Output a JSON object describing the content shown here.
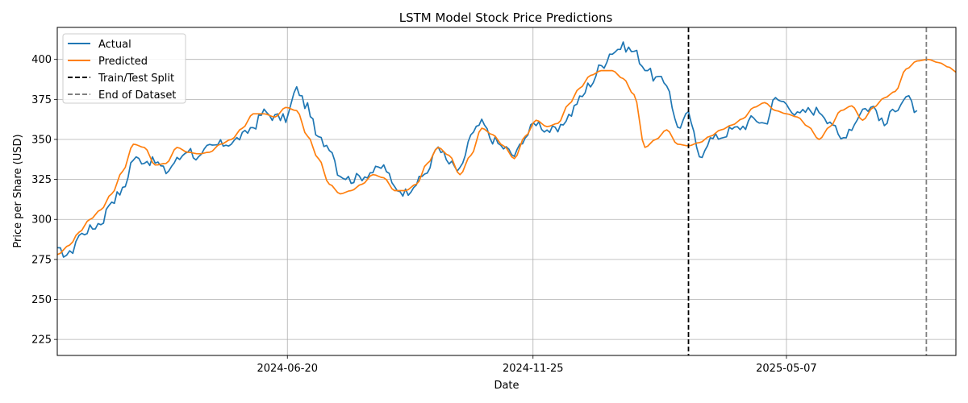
{
  "chart_data": {
    "type": "line",
    "title": "LSTM Model Stock Price Predictions",
    "xlabel": "Date",
    "ylabel": "Price per Share (USD)",
    "x_tick_labels": [
      "2024-06-20",
      "2024-11-25",
      "2025-05-07"
    ],
    "y_ticks": [
      225,
      250,
      275,
      300,
      325,
      350,
      375,
      400
    ],
    "ylim": [
      215,
      420
    ],
    "grid": true,
    "legend_position": "top-left",
    "x_range_dates": [
      "2024-01-24",
      "2025-08-24"
    ],
    "series": [
      {
        "name": "Actual",
        "color": "#1f77b4",
        "x": [
          "2024-01-24",
          "2024-02-01",
          "2024-02-07",
          "2024-02-14",
          "2024-02-21",
          "2024-02-28",
          "2024-03-06",
          "2024-03-13",
          "2024-03-20",
          "2024-03-27",
          "2024-04-03",
          "2024-04-10",
          "2024-04-17",
          "2024-04-24",
          "2024-05-01",
          "2024-05-08",
          "2024-05-15",
          "2024-05-22",
          "2024-05-29",
          "2024-06-05",
          "2024-06-12",
          "2024-06-19",
          "2024-06-26",
          "2024-07-03",
          "2024-07-10",
          "2024-07-17",
          "2024-07-24",
          "2024-07-31",
          "2024-08-07",
          "2024-08-14",
          "2024-08-21",
          "2024-08-28",
          "2024-09-04",
          "2024-09-11",
          "2024-09-18",
          "2024-09-25",
          "2024-10-02",
          "2024-10-09",
          "2024-10-16",
          "2024-10-23",
          "2024-10-30",
          "2024-11-06",
          "2024-11-13",
          "2024-11-20",
          "2024-11-27",
          "2024-12-04",
          "2024-12-11",
          "2024-12-18",
          "2024-12-25",
          "2025-01-01",
          "2025-01-08",
          "2025-01-15",
          "2025-01-22",
          "2025-01-29",
          "2025-02-05",
          "2025-02-12",
          "2025-02-19",
          "2025-02-26",
          "2025-03-05",
          "2025-03-12",
          "2025-03-19",
          "2025-03-26",
          "2025-04-02",
          "2025-04-09",
          "2025-04-16",
          "2025-04-23",
          "2025-04-30",
          "2025-05-07",
          "2025-05-14",
          "2025-05-21",
          "2025-05-28",
          "2025-06-04",
          "2025-06-11",
          "2025-06-18",
          "2025-06-25",
          "2025-07-02",
          "2025-07-09",
          "2025-07-16",
          "2025-07-23",
          "2025-07-30"
        ],
        "y": [
          280,
          278,
          290,
          294,
          298,
          312,
          318,
          338,
          337,
          336,
          330,
          337,
          344,
          338,
          345,
          347,
          348,
          352,
          358,
          367,
          364,
          363,
          381,
          370,
          350,
          346,
          328,
          325,
          327,
          330,
          333,
          320,
          317,
          323,
          330,
          346,
          335,
          330,
          352,
          360,
          350,
          345,
          340,
          352,
          361,
          356,
          355,
          365,
          375,
          385,
          396,
          405,
          408,
          405,
          395,
          388,
          385,
          358,
          365,
          340,
          350,
          352,
          356,
          358,
          363,
          360,
          375,
          373,
          365,
          368,
          368,
          362,
          350,
          358,
          369,
          370,
          359,
          370,
          376,
          368
        ]
      },
      {
        "name": "Predicted",
        "color": "#ff7f0e",
        "x": [
          "2024-01-24",
          "2024-02-01",
          "2024-02-07",
          "2024-02-14",
          "2024-02-21",
          "2024-02-28",
          "2024-03-06",
          "2024-03-13",
          "2024-03-20",
          "2024-03-27",
          "2024-04-03",
          "2024-04-10",
          "2024-04-17",
          "2024-04-24",
          "2024-05-01",
          "2024-05-08",
          "2024-05-15",
          "2024-05-22",
          "2024-05-29",
          "2024-06-05",
          "2024-06-12",
          "2024-06-19",
          "2024-06-26",
          "2024-07-03",
          "2024-07-10",
          "2024-07-17",
          "2024-07-24",
          "2024-07-31",
          "2024-08-07",
          "2024-08-14",
          "2024-08-21",
          "2024-08-28",
          "2024-09-04",
          "2024-09-11",
          "2024-09-18",
          "2024-09-25",
          "2024-10-02",
          "2024-10-09",
          "2024-10-16",
          "2024-10-23",
          "2024-10-30",
          "2024-11-06",
          "2024-11-13",
          "2024-11-20",
          "2024-11-27",
          "2024-12-04",
          "2024-12-11",
          "2024-12-18",
          "2024-12-25",
          "2025-01-01",
          "2025-01-08",
          "2025-01-15",
          "2025-01-22",
          "2025-01-29",
          "2025-02-05",
          "2025-02-12",
          "2025-02-19",
          "2025-02-26",
          "2025-03-05",
          "2025-03-12",
          "2025-03-19",
          "2025-03-26",
          "2025-04-02",
          "2025-04-09",
          "2025-04-16",
          "2025-04-23",
          "2025-04-30",
          "2025-05-07",
          "2025-05-14",
          "2025-05-21",
          "2025-05-28",
          "2025-06-04",
          "2025-06-11",
          "2025-06-18",
          "2025-06-25",
          "2025-07-02",
          "2025-07-09",
          "2025-07-16",
          "2025-07-23",
          "2025-07-30",
          "2025-08-06",
          "2025-08-13",
          "2025-08-20",
          "2025-08-24"
        ],
        "y": [
          278,
          284,
          292,
          300,
          306,
          316,
          330,
          347,
          345,
          334,
          335,
          345,
          342,
          341,
          342,
          347,
          350,
          357,
          366,
          366,
          364,
          370,
          368,
          352,
          338,
          322,
          316,
          318,
          322,
          328,
          326,
          318,
          318,
          322,
          335,
          345,
          340,
          328,
          340,
          357,
          353,
          346,
          338,
          352,
          362,
          358,
          360,
          372,
          382,
          390,
          393,
          393,
          388,
          378,
          345,
          350,
          356,
          347,
          346,
          348,
          352,
          356,
          359,
          363,
          370,
          373,
          368,
          366,
          364,
          358,
          350,
          358,
          368,
          371,
          362,
          370,
          376,
          380,
          394,
          399,
          400,
          398,
          395,
          392
        ]
      }
    ],
    "vlines": [
      {
        "name": "Train/Test Split",
        "date": "2025-03-05",
        "color": "#000000",
        "style": "dashed"
      },
      {
        "name": "End of Dataset",
        "date": "2025-08-05",
        "color": "#808080",
        "style": "dashed"
      }
    ]
  }
}
